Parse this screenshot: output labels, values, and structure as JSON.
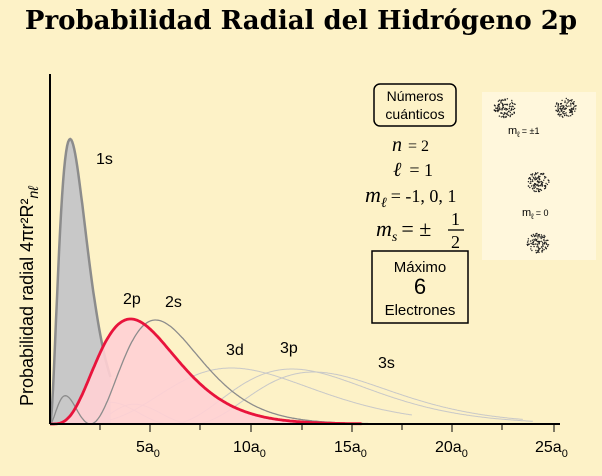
{
  "title": "Probabilidad Radial del Hidrógeno 2p",
  "y_axis_label": "Probabilidad radial 4πr²R²",
  "y_axis_sub": "nℓ",
  "x_ticks": [
    {
      "main": "5a",
      "sub": "0"
    },
    {
      "main": "10a",
      "sub": "0"
    },
    {
      "main": "15a",
      "sub": "0"
    },
    {
      "main": "20a",
      "sub": "0"
    },
    {
      "main": "25a",
      "sub": "0"
    }
  ],
  "curve_labels": {
    "1s": "1s",
    "2p": "2p",
    "2s": "2s",
    "3d": "3d",
    "3p": "3p",
    "3s": "3s"
  },
  "quantum_box": {
    "line1": "Números",
    "line2": "cuánticos"
  },
  "quantum_numbers": {
    "n": {
      "symbol": "n",
      "value": "= 2"
    },
    "l": {
      "symbol": "ℓ",
      "value": "= 1"
    },
    "ml": {
      "symbol": "m",
      "sub": "ℓ",
      "value": "= -1, 0, 1"
    },
    "ms": {
      "symbol": "m",
      "sub": "s",
      "value": "= ±",
      "frac_num": "1",
      "frac_den": "2"
    }
  },
  "max_box": {
    "line1": "Máximo",
    "line2": "6",
    "line3": "Electrones"
  },
  "orbital_panel": {
    "label_pm": {
      "main": "m",
      "sub": "ℓ",
      "value": "= ±1"
    },
    "label_zero": {
      "main": "m",
      "sub": "ℓ",
      "value": "= 0"
    }
  },
  "colors": {
    "background": "#fdf2c7",
    "highlight": "#e8143c",
    "highlight_fill": "#ffd0d4",
    "gray_fill": "#c8c8c8",
    "gray_line": "#8c8c8c",
    "faint_line": "#c8c8c8"
  }
}
